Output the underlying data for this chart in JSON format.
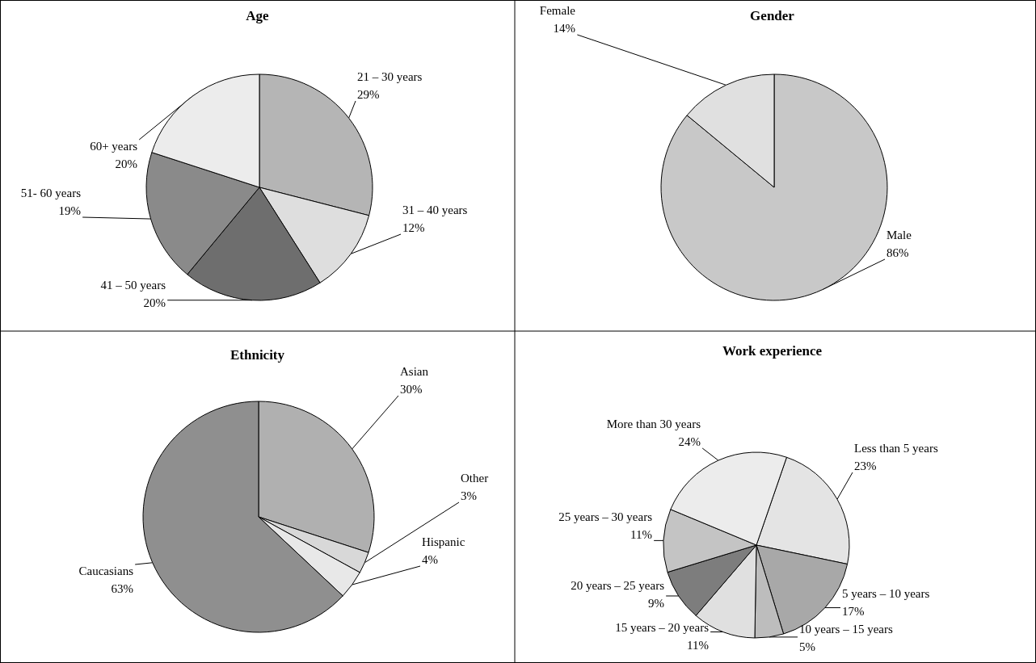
{
  "chart_data": [
    {
      "type": "pie",
      "title": "Age",
      "categories": [
        "21 – 30 years",
        "31 – 40 years",
        "41 – 50 years",
        "51- 60 years",
        "60+ years"
      ],
      "values": [
        29,
        12,
        20,
        19,
        20
      ],
      "value_labels": [
        "29%",
        "12%",
        "20%",
        "19%",
        "20%"
      ],
      "colors": [
        "#b5b5b5",
        "#dedede",
        "#6e6e6e",
        "#8a8a8a",
        "#ececec"
      ]
    },
    {
      "type": "pie",
      "title": "Gender",
      "categories": [
        "Male",
        "Female"
      ],
      "values": [
        86,
        14
      ],
      "value_labels": [
        "86%",
        "14%"
      ],
      "colors": [
        "#c8c8c8",
        "#e0e0e0"
      ]
    },
    {
      "type": "pie",
      "title": "Ethnicity",
      "categories": [
        "Asian",
        "Other",
        "Hispanic",
        "Caucasians"
      ],
      "values": [
        30,
        3,
        4,
        63
      ],
      "value_labels": [
        "30%",
        "3%",
        "4%",
        "63%"
      ],
      "colors": [
        "#b0b0b0",
        "#d8d8d8",
        "#e8e8e8",
        "#8f8f8f"
      ]
    },
    {
      "type": "pie",
      "title": "Work experience",
      "categories": [
        "Less than 5 years",
        "5 years – 10 years",
        "10 years – 15 years",
        "15 years – 20 years",
        "20 years – 25 years",
        "25 years – 30 years",
        "More than 30 years"
      ],
      "values": [
        23,
        17,
        5,
        11,
        9,
        11,
        24
      ],
      "value_labels": [
        "23%",
        "17%",
        "5%",
        "11%",
        "9%",
        "11%",
        "24%"
      ],
      "colors": [
        "#e4e4e4",
        "#a8a8a8",
        "#bdbdbd",
        "#e0e0e0",
        "#7d7d7d",
        "#c4c4c4",
        "#ececec"
      ]
    }
  ]
}
